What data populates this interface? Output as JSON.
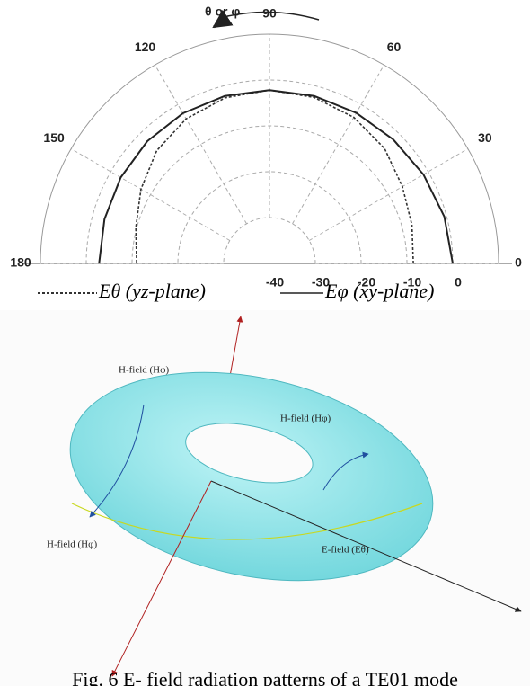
{
  "chart_data": {
    "type": "polar",
    "rotation_label": "θ or φ",
    "theta": [
      0,
      15,
      30,
      45,
      60,
      75,
      90,
      105,
      120,
      135,
      150,
      165,
      180
    ],
    "thetaticks": [
      0,
      30,
      60,
      90,
      120,
      150,
      180
    ],
    "rlim": [
      -40,
      10
    ],
    "rticks": [
      -40,
      -30,
      -20,
      -10,
      0
    ],
    "grid": true,
    "series": [
      {
        "name": "Eθ (yz-plane)",
        "color": "#333333",
        "dash": true,
        "values": [
          -8.6,
          -7.8,
          -6.5,
          -4.5,
          -3.2,
          -2.5,
          -2.2,
          -2.6,
          -3.6,
          -5.2,
          -7.6,
          -9.8,
          -11
        ]
      },
      {
        "name": "Eφ (xy-plane)",
        "color": "#222222",
        "dash": false,
        "values": [
          0,
          -0.5,
          -1.2,
          -1.8,
          -2.1,
          -2.2,
          -2.2,
          -2.2,
          -2.2,
          -2.3,
          -2.5,
          -2.7,
          -2.8
        ]
      }
    ]
  },
  "diagram": {
    "labels": [
      "H-field (Hφ)",
      "H-field (Hφ)",
      "H-field (Hφ)",
      "E-field (Eθ)"
    ]
  },
  "caption": "Fig. 6 E- field radiation patterns of a TE01 mode"
}
